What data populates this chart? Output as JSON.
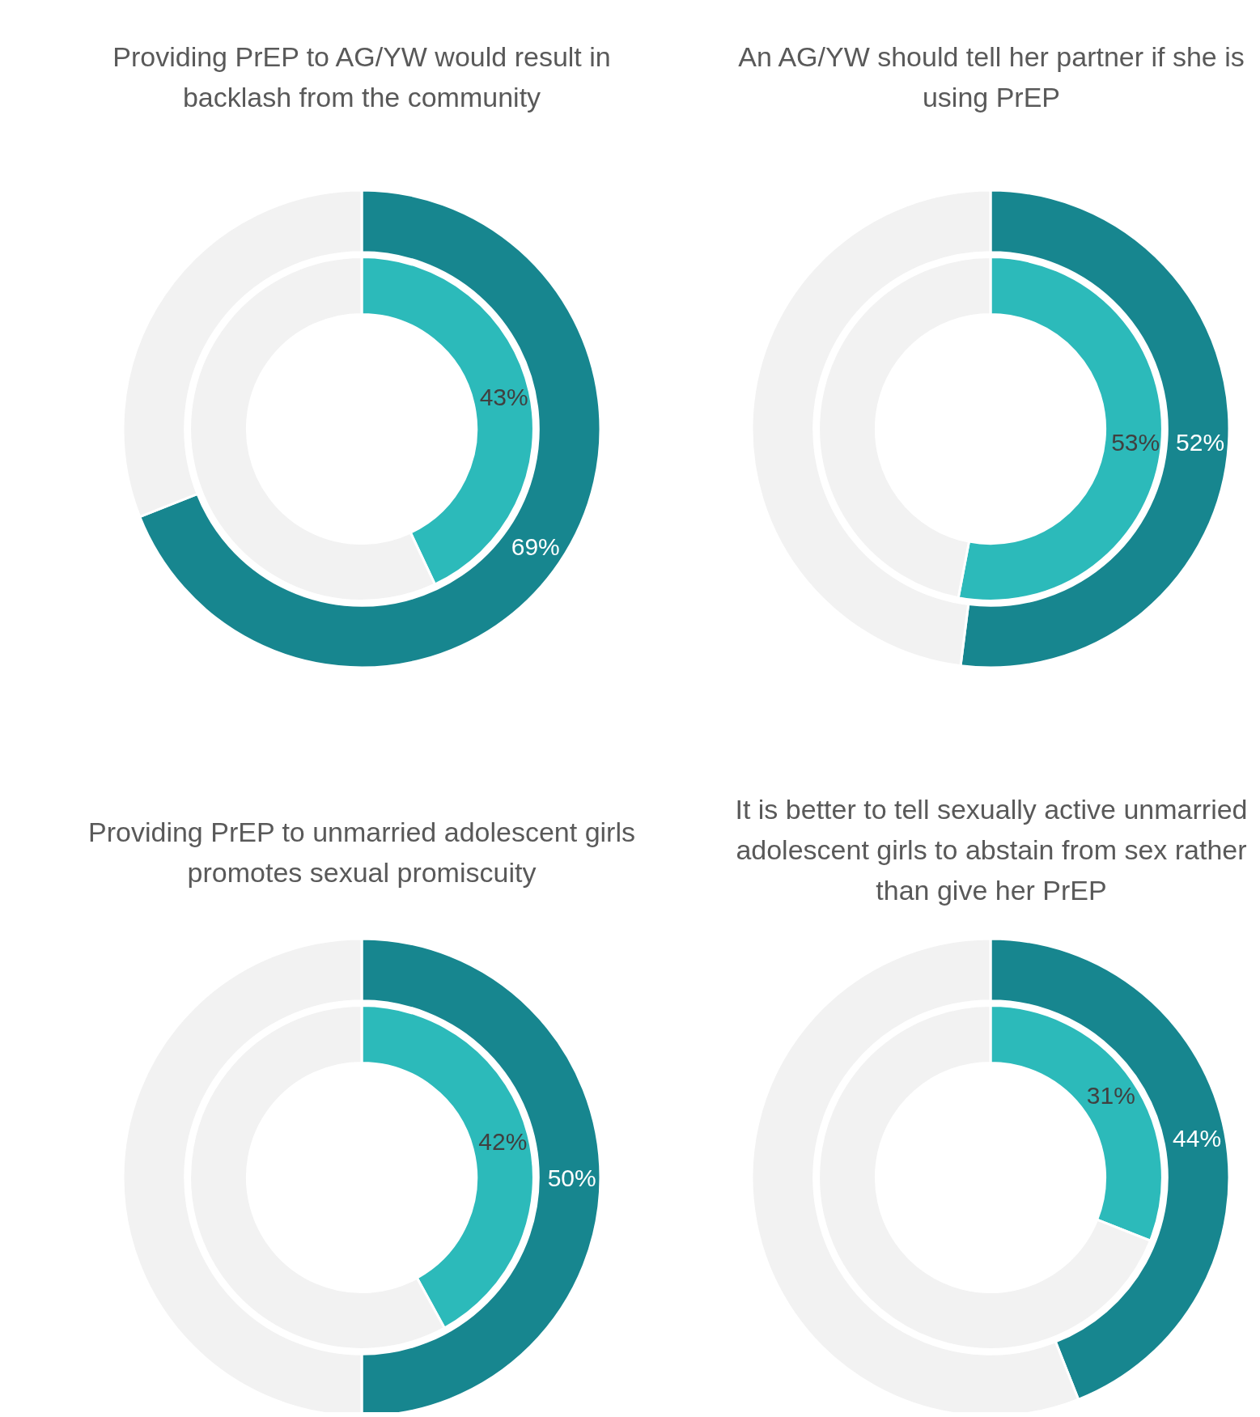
{
  "chart_data": [
    {
      "type": "donut",
      "title": "Providing PrEP to AG/YW would result in backlash from the community",
      "categories": [
        null,
        null
      ],
      "series": [
        {
          "colors": [
            "#17868f",
            "#f2f2f2"
          ],
          "values": [
            69,
            31
          ],
          "value_labels": [
            "69%",
            null
          ]
        },
        {
          "colors": [
            "#2cbaba",
            "#f2f2f2"
          ],
          "values": [
            43,
            57
          ],
          "value_labels": [
            "43%",
            null
          ]
        }
      ]
    },
    {
      "type": "donut",
      "title": "An AG/YW should tell her partner if she is using PrEP",
      "categories": [
        null,
        null
      ],
      "series": [
        {
          "colors": [
            "#17868f",
            "#f2f2f2"
          ],
          "values": [
            52,
            48
          ],
          "value_labels": [
            "52%",
            null
          ]
        },
        {
          "colors": [
            "#2cbaba",
            "#f2f2f2"
          ],
          "values": [
            53,
            47
          ],
          "value_labels": [
            "53%",
            null
          ]
        }
      ]
    },
    {
      "type": "donut",
      "title": "Providing PrEP to unmarried adolescent girls promotes sexual promiscuity",
      "categories": [
        null,
        null
      ],
      "series": [
        {
          "colors": [
            "#17868f",
            "#f2f2f2"
          ],
          "values": [
            50,
            50
          ],
          "value_labels": [
            "50%",
            null
          ]
        },
        {
          "colors": [
            "#2cbaba",
            "#f2f2f2"
          ],
          "values": [
            42,
            58
          ],
          "value_labels": [
            "42%",
            null
          ]
        }
      ]
    },
    {
      "type": "donut",
      "title": "It is better to tell sexually active unmarried adolescent girls to abstain from sex rather than give her PrEP",
      "categories": [
        null,
        null
      ],
      "series": [
        {
          "colors": [
            "#17868f",
            "#f2f2f2"
          ],
          "values": [
            44,
            56
          ],
          "value_labels": [
            "44%",
            null
          ]
        },
        {
          "colors": [
            "#2cbaba",
            "#f2f2f2"
          ],
          "values": [
            31,
            69
          ],
          "value_labels": [
            "31%",
            null
          ]
        }
      ]
    }
  ]
}
